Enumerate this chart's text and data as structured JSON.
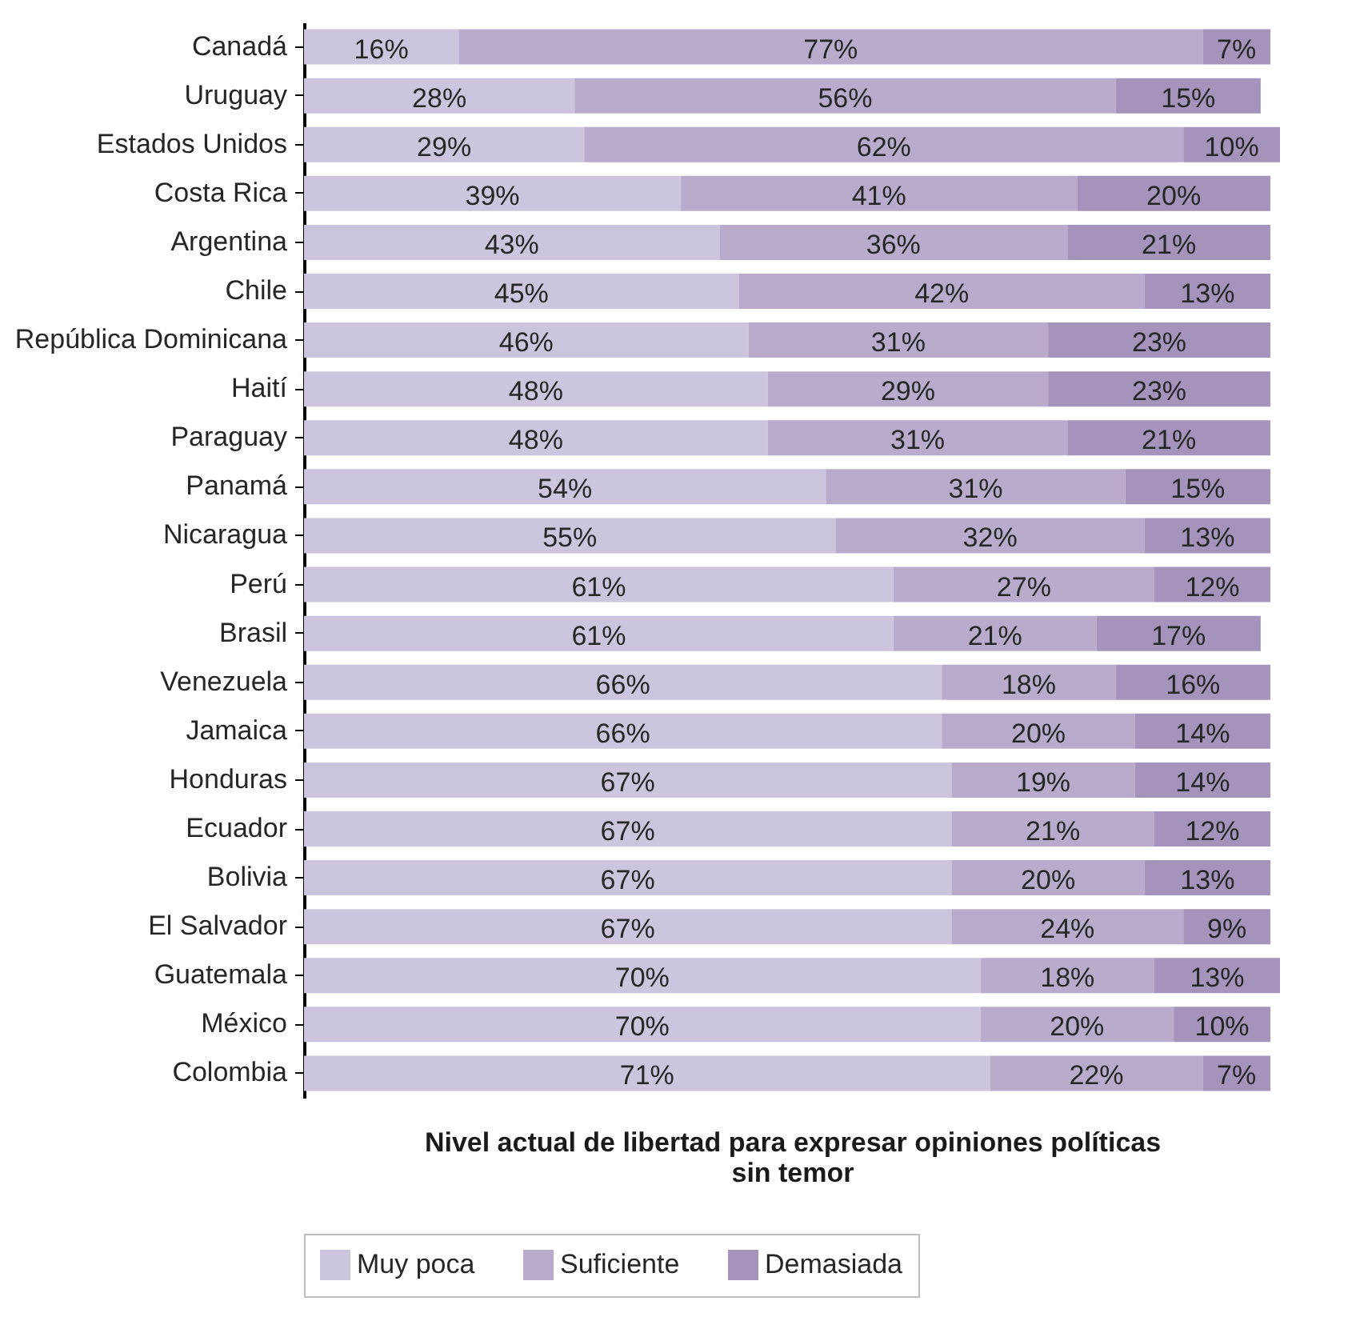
{
  "chart_data": {
    "type": "bar",
    "orientation": "horizontal",
    "stacked": true,
    "xlabel": "Nivel actual de libertad para expresar opiniones políticas sin temor",
    "legend": "bottom",
    "grid": false,
    "categories": [
      "Canadá",
      "Uruguay",
      "Estados Unidos",
      "Costa Rica",
      "Argentina",
      "Chile",
      "República Dominicana",
      "Haití",
      "Paraguay",
      "Panamá",
      "Nicaragua",
      "Perú",
      "Brasil",
      "Venezuela",
      "Jamaica",
      "Honduras",
      "Ecuador",
      "Bolivia",
      "El Salvador",
      "Guatemala",
      "México",
      "Colombia"
    ],
    "series": [
      {
        "name": "Muy poca",
        "color": "#cdc4dd",
        "values": [
          16,
          28,
          29,
          39,
          43,
          45,
          46,
          48,
          48,
          54,
          55,
          61,
          61,
          66,
          66,
          67,
          67,
          67,
          67,
          70,
          70,
          71
        ],
        "value_labels": [
          "16%",
          "28%",
          "29%",
          "39%",
          "43%",
          "45%",
          "46%",
          "48%",
          "48%",
          "54%",
          "55%",
          "61%",
          "61%",
          "66%",
          "66%",
          "67%",
          "67%",
          "67%",
          "67%",
          "70%",
          "70%",
          "71%"
        ]
      },
      {
        "name": "Suficiente",
        "color": "#b8abcb",
        "values": [
          77,
          56,
          62,
          41,
          36,
          42,
          31,
          29,
          31,
          31,
          32,
          27,
          21,
          18,
          20,
          19,
          21,
          20,
          24,
          18,
          20,
          22
        ],
        "value_labels": [
          "77%",
          "56%",
          "62%",
          "41%",
          "36%",
          "42%",
          "31%",
          "29%",
          "31%",
          "31%",
          "32%",
          "27%",
          "21%",
          "18%",
          "20%",
          "19%",
          "21%",
          "20%",
          "24%",
          "18%",
          "20%",
          "22%"
        ]
      },
      {
        "name": "Demasiada",
        "color": "#a493bb",
        "values": [
          7,
          15,
          10,
          20,
          21,
          13,
          23,
          23,
          21,
          15,
          13,
          12,
          17,
          16,
          14,
          14,
          12,
          13,
          9,
          13,
          10,
          7
        ],
        "value_labels": [
          "7%",
          "15%",
          "10%",
          "20%",
          "21%",
          "13%",
          "23%",
          "23%",
          "21%",
          "15%",
          "13%",
          "12%",
          "17%",
          "16%",
          "14%",
          "14%",
          "12%",
          "13%",
          "9%",
          "13%",
          "10%",
          "7%"
        ]
      }
    ]
  }
}
